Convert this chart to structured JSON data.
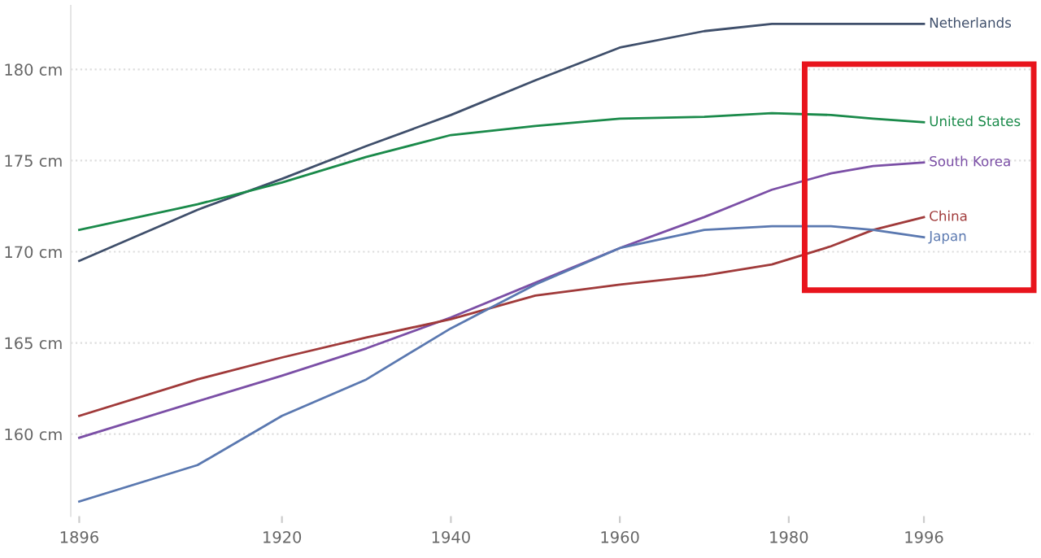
{
  "chart_data": {
    "type": "line",
    "x": [
      1896,
      1910,
      1920,
      1930,
      1940,
      1950,
      1960,
      1970,
      1978,
      1985,
      1990,
      1996
    ],
    "series": [
      {
        "name": "Netherlands",
        "color": "#3f4f6b",
        "values": [
          169.5,
          172.3,
          174.0,
          175.8,
          177.5,
          179.4,
          181.2,
          182.1,
          182.5,
          182.5,
          182.5,
          182.5
        ]
      },
      {
        "name": "United States",
        "color": "#1a8a4a",
        "values": [
          171.2,
          172.6,
          173.8,
          175.2,
          176.4,
          176.9,
          177.3,
          177.4,
          177.6,
          177.5,
          177.3,
          177.1
        ]
      },
      {
        "name": "South Korea",
        "color": "#7b4fa6",
        "values": [
          159.8,
          161.8,
          163.2,
          164.7,
          166.4,
          168.3,
          170.2,
          171.9,
          173.4,
          174.3,
          174.7,
          174.9
        ]
      },
      {
        "name": "China",
        "color": "#a03a3a",
        "values": [
          161.0,
          163.0,
          164.2,
          165.3,
          166.3,
          167.6,
          168.2,
          168.7,
          169.3,
          170.3,
          171.2,
          171.9
        ]
      },
      {
        "name": "Japan",
        "color": "#5a78b0",
        "values": [
          156.3,
          158.3,
          161.0,
          163.0,
          165.8,
          168.2,
          170.2,
          171.2,
          171.4,
          171.4,
          171.2,
          170.8
        ]
      }
    ],
    "xlim": [
      1895,
      2009
    ],
    "ylim": [
      155.5,
      183.5
    ],
    "xticks": [
      1896,
      1920,
      1940,
      1960,
      1980,
      1996
    ],
    "yticks": [
      {
        "value": 160,
        "label": "160 cm"
      },
      {
        "value": 165,
        "label": "165 cm"
      },
      {
        "value": 170,
        "label": "170 cm"
      },
      {
        "value": 175,
        "label": "175 cm"
      },
      {
        "value": 180,
        "label": "180 cm"
      }
    ],
    "grid": "y",
    "line_style": "solid"
  }
}
